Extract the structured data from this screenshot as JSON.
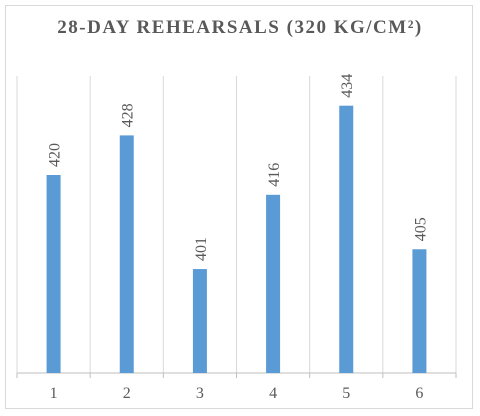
{
  "chart_data": {
    "type": "bar",
    "title": "28-DAY REHEARSALS (320 KG/CM²)",
    "xlabel": "",
    "ylabel": "",
    "categories": [
      "1",
      "2",
      "3",
      "4",
      "5",
      "6"
    ],
    "series": [
      {
        "values": [
          420,
          428,
          401,
          416,
          434,
          405
        ]
      }
    ],
    "data_labels": [
      "420",
      "428",
      "401",
      "416",
      "434",
      "405"
    ],
    "ylim": [
      380,
      440
    ],
    "grid": "vertical",
    "legend": "none",
    "bar_color": "#5b9bd5",
    "grid_color": "#d9d9d9",
    "axis_color": "#bfbfbf",
    "text_color": "#595959"
  }
}
